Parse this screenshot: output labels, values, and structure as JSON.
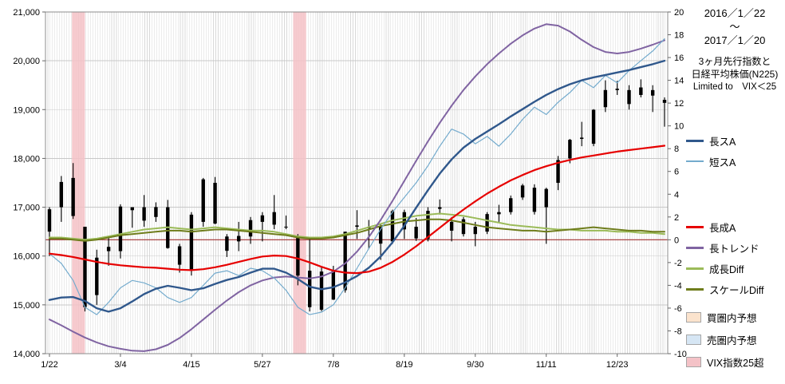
{
  "header": {
    "start_date": "2016／1／22",
    "tilde": "～",
    "end_date": "2017／1／20",
    "subtitle_line1": "3ヶ月先行指数と",
    "subtitle_line2": "日経平均株価(N225)",
    "subtitle_line3": "Limited to　VIX＜25"
  },
  "colors": {
    "candle": "#000000",
    "grid": "#d9d9d9",
    "grid_h": "#c8c8c8",
    "border": "#8c8c8c",
    "zero_line": "#a03030",
    "long_s_a": "#30588c",
    "short_s_a": "#74abcd",
    "long_sei_a": "#e60000",
    "long_trend": "#8064a2",
    "growth_diff": "#9bbb59",
    "scale_diff": "#6f7d1c",
    "buy_zone": "#fbe3cd",
    "sell_zone": "#d6e6f4",
    "vix_band": "#f4c2c7"
  },
  "legend": {
    "groups": [
      [
        {
          "id": "long-s-a",
          "label": "長スA",
          "swatch": "line",
          "color": "#30588c",
          "weight": 3
        },
        {
          "id": "short-s-a",
          "label": "短スA",
          "swatch": "line",
          "color": "#74abcd",
          "weight": 2
        }
      ],
      [
        {
          "id": "long-sei-a",
          "label": "長成A",
          "swatch": "line",
          "color": "#e60000",
          "weight": 3
        },
        {
          "id": "long-trend",
          "label": "長トレンド",
          "swatch": "line",
          "color": "#8064a2",
          "weight": 3
        },
        {
          "id": "growth-diff",
          "label": "成長Diff",
          "swatch": "line",
          "color": "#9bbb59",
          "weight": 3
        },
        {
          "id": "scale-diff",
          "label": "スケールDiff",
          "swatch": "line",
          "color": "#6f7d1c",
          "weight": 3
        }
      ],
      [
        {
          "id": "buy-zone-forecast",
          "label": "買圏内予想",
          "swatch": "box",
          "color": "#fbe3cd"
        },
        {
          "id": "sell-zone-forecast",
          "label": "売圏内予想",
          "swatch": "box",
          "color": "#d6e6f4"
        },
        {
          "id": "vix-over-25",
          "label": "VIX指数25超",
          "swatch": "box",
          "color": "#f4c2c7"
        }
      ]
    ]
  },
  "chart_data": {
    "type": "mixed",
    "title": "3ヶ月先行指数と日経平均株価(N225) Limited to VIX＜25",
    "period": {
      "start": "2016/1/22",
      "end": "2017/1/20"
    },
    "x_axis": {
      "labels": [
        "1/22",
        "3/4",
        "4/15",
        "5/27",
        "7/8",
        "8/19",
        "9/30",
        "11/11",
        "12/23"
      ],
      "positions_weeks": [
        0,
        6,
        12,
        18,
        24,
        30,
        36,
        42,
        48
      ],
      "total_weeks": 52
    },
    "y_axis_left": {
      "min": 14000,
      "max": 21000,
      "step": 1000,
      "tick_labels": [
        "14,000",
        "15,000",
        "16,000",
        "17,000",
        "18,000",
        "19,000",
        "20,000",
        "21,000"
      ]
    },
    "y_axis_right": {
      "min": -10,
      "max": 20,
      "step": 2,
      "tick_labels": [
        "-10",
        "-8",
        "-6",
        "-4",
        "-2",
        "0",
        "2",
        "4",
        "6",
        "8",
        "10",
        "12",
        "14",
        "16",
        "18",
        "20"
      ]
    },
    "candlestick": {
      "name": "日経平均株価(N225)",
      "axis": "left",
      "weekly_ohlc": [
        [
          16500,
          17000,
          16000,
          16958
        ],
        [
          17000,
          17640,
          16700,
          17518
        ],
        [
          17600,
          17905,
          16760,
          16820
        ],
        [
          16600,
          16600,
          14865,
          14953
        ],
        [
          15200,
          16130,
          15000,
          15967
        ],
        [
          16100,
          16400,
          15800,
          16188
        ],
        [
          16100,
          17060,
          15950,
          17015
        ],
        [
          17000,
          17000,
          16580,
          16939
        ],
        [
          17000,
          17250,
          16600,
          16725
        ],
        [
          16800,
          17100,
          16700,
          17003
        ],
        [
          17000,
          17150,
          16150,
          16164
        ],
        [
          16200,
          16250,
          15660,
          15822
        ],
        [
          15700,
          16900,
          15600,
          16848
        ],
        [
          16700,
          17600,
          16600,
          17572
        ],
        [
          17500,
          17620,
          16650,
          16666
        ],
        [
          16400,
          16450,
          15980,
          16107
        ],
        [
          16300,
          16700,
          16100,
          16412
        ],
        [
          16400,
          16800,
          16250,
          16736
        ],
        [
          16700,
          16900,
          16300,
          16834
        ],
        [
          16900,
          17250,
          16550,
          16642
        ],
        [
          16600,
          16830,
          16550,
          16601
        ],
        [
          16400,
          16450,
          15400,
          15599
        ],
        [
          15700,
          16390,
          14864,
          14952
        ],
        [
          14900,
          15780,
          14870,
          15682
        ],
        [
          15700,
          15800,
          15100,
          15107
        ],
        [
          15300,
          16500,
          15250,
          16498
        ],
        [
          16600,
          16940,
          16350,
          16627
        ],
        [
          16600,
          16740,
          16150,
          16569
        ],
        [
          16600,
          16650,
          15920,
          16254
        ],
        [
          16300,
          16950,
          16250,
          16920
        ],
        [
          16900,
          16950,
          16350,
          16546
        ],
        [
          16600,
          16780,
          16310,
          16361
        ],
        [
          16350,
          17000,
          16300,
          16926
        ],
        [
          17000,
          17160,
          16850,
          16966
        ],
        [
          16700,
          16800,
          16300,
          16519
        ],
        [
          16450,
          16800,
          16400,
          16754
        ],
        [
          16600,
          16700,
          16200,
          16450
        ],
        [
          16500,
          16900,
          16450,
          16860
        ],
        [
          16900,
          17050,
          16700,
          16856
        ],
        [
          16900,
          17240,
          16850,
          17185
        ],
        [
          17200,
          17480,
          17150,
          17446
        ],
        [
          17400,
          17470,
          16850,
          16905
        ],
        [
          17000,
          17400,
          16250,
          17375
        ],
        [
          17500,
          18050,
          17350,
          17967
        ],
        [
          18000,
          18400,
          17900,
          18381
        ],
        [
          18400,
          18750,
          18250,
          18426
        ],
        [
          18300,
          19010,
          18250,
          18996
        ],
        [
          19050,
          19600,
          18950,
          19401
        ],
        [
          19400,
          19590,
          19300,
          19428
        ],
        [
          19400,
          19500,
          19000,
          19114
        ],
        [
          19300,
          19620,
          19250,
          19454
        ],
        [
          19400,
          19500,
          18950,
          19287
        ],
        [
          19200,
          19250,
          18650,
          19138
        ]
      ]
    },
    "series": [
      {
        "id": "growth-diff",
        "name": "成長Diff",
        "axis": "right",
        "color": "#9bbb59",
        "width": 2,
        "values": [
          0.2,
          0.2,
          0.1,
          0.0,
          0.1,
          0.3,
          0.5,
          0.7,
          0.9,
          1.0,
          1.1,
          1.0,
          0.9,
          1.0,
          1.1,
          1.0,
          0.9,
          0.8,
          0.8,
          0.7,
          0.5,
          0.3,
          0.2,
          0.2,
          0.3,
          0.5,
          0.8,
          1.1,
          1.4,
          1.7,
          1.9,
          2.1,
          2.2,
          2.3,
          2.2,
          2.1,
          1.9,
          1.7,
          1.5,
          1.3,
          1.2,
          1.1,
          1.0,
          0.9,
          0.9,
          0.8,
          0.8,
          0.8,
          0.7,
          0.7,
          0.6,
          0.6,
          0.5
        ]
      },
      {
        "id": "scale-diff",
        "name": "スケールDiff",
        "axis": "right",
        "color": "#6f7d1c",
        "width": 2,
        "values": [
          0.1,
          0.1,
          0.0,
          -0.1,
          0.0,
          0.2,
          0.4,
          0.5,
          0.6,
          0.7,
          0.8,
          0.8,
          0.7,
          0.8,
          0.9,
          0.9,
          0.8,
          0.7,
          0.6,
          0.5,
          0.4,
          0.2,
          0.1,
          0.1,
          0.2,
          0.4,
          0.6,
          0.9,
          1.2,
          1.4,
          1.6,
          1.7,
          1.8,
          1.8,
          1.7,
          1.5,
          1.3,
          1.1,
          1.0,
          0.9,
          0.8,
          0.8,
          0.7,
          0.8,
          0.9,
          1.0,
          1.1,
          1.0,
          0.9,
          0.8,
          0.8,
          0.7,
          0.7
        ]
      },
      {
        "id": "long-trend",
        "name": "長トレンド",
        "axis": "left",
        "color": "#8064a2",
        "width": 2,
        "values": [
          14700,
          14580,
          14450,
          14330,
          14230,
          14150,
          14100,
          14060,
          14050,
          14090,
          14180,
          14320,
          14500,
          14700,
          14900,
          15090,
          15260,
          15400,
          15500,
          15560,
          15580,
          15560,
          15540,
          15580,
          15680,
          15850,
          16090,
          16390,
          16740,
          17130,
          17540,
          17950,
          18350,
          18730,
          19080,
          19400,
          19680,
          19930,
          20150,
          20350,
          20520,
          20660,
          20750,
          20720,
          20600,
          20430,
          20280,
          20180,
          20150,
          20180,
          20250,
          20330,
          20420
        ]
      },
      {
        "id": "short-s-a",
        "name": "短スA",
        "axis": "left",
        "color": "#74abcd",
        "width": 1.2,
        "values": [
          16050,
          15850,
          15500,
          14950,
          14800,
          15050,
          15350,
          15500,
          15450,
          15350,
          15150,
          15050,
          15150,
          15400,
          15650,
          15700,
          15600,
          15750,
          15700,
          15550,
          15300,
          14950,
          14800,
          14850,
          15000,
          15350,
          15750,
          16150,
          16550,
          16900,
          17200,
          17500,
          17850,
          18250,
          18600,
          18500,
          18300,
          18450,
          18250,
          18500,
          18800,
          19050,
          18900,
          19150,
          19350,
          19600,
          19450,
          19700,
          19550,
          19800,
          20000,
          20200,
          20450
        ]
      },
      {
        "id": "long-s-a",
        "name": "長スA",
        "axis": "left",
        "color": "#30588c",
        "width": 2.4,
        "values": [
          15100,
          15150,
          15160,
          15080,
          14930,
          14860,
          14930,
          15070,
          15220,
          15330,
          15390,
          15350,
          15300,
          15340,
          15430,
          15510,
          15570,
          15660,
          15740,
          15740,
          15660,
          15530,
          15370,
          15320,
          15360,
          15460,
          15590,
          15760,
          15990,
          16280,
          16620,
          16990,
          17350,
          17690,
          17980,
          18220,
          18400,
          18550,
          18700,
          18860,
          19010,
          19160,
          19300,
          19420,
          19520,
          19600,
          19660,
          19710,
          19760,
          19810,
          19870,
          19930,
          20000
        ]
      },
      {
        "id": "long-sei-a",
        "name": "長成A",
        "axis": "left",
        "color": "#e60000",
        "width": 2.2,
        "values": [
          16050,
          16020,
          15980,
          15930,
          15880,
          15840,
          15810,
          15790,
          15770,
          15760,
          15740,
          15720,
          15710,
          15730,
          15770,
          15820,
          15880,
          15940,
          15990,
          16010,
          16000,
          15950,
          15870,
          15780,
          15700,
          15660,
          15650,
          15680,
          15760,
          15880,
          16030,
          16200,
          16390,
          16580,
          16770,
          16950,
          17120,
          17280,
          17420,
          17550,
          17660,
          17760,
          17840,
          17910,
          17970,
          18020,
          18060,
          18100,
          18140,
          18170,
          18200,
          18230,
          18260
        ]
      }
    ],
    "zero_line": {
      "axis": "right",
      "value": 0,
      "color": "#a03030"
    },
    "vix_bands": [
      {
        "name": "VIX指数25超",
        "start_week": 1.9,
        "end_week": 3.0
      },
      {
        "name": "VIX指数25超",
        "start_week": 20.6,
        "end_week": 21.7
      }
    ],
    "band_color": "#f4c2c7"
  }
}
